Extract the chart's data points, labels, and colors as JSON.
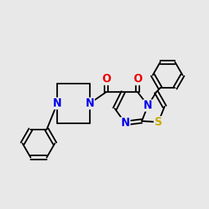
{
  "background_color": "#e8e8e8",
  "bond_color": "#000000",
  "bond_width": 1.6,
  "atom_colors": {
    "N": "#0000ee",
    "O": "#ee0000",
    "S": "#ccaa00"
  }
}
